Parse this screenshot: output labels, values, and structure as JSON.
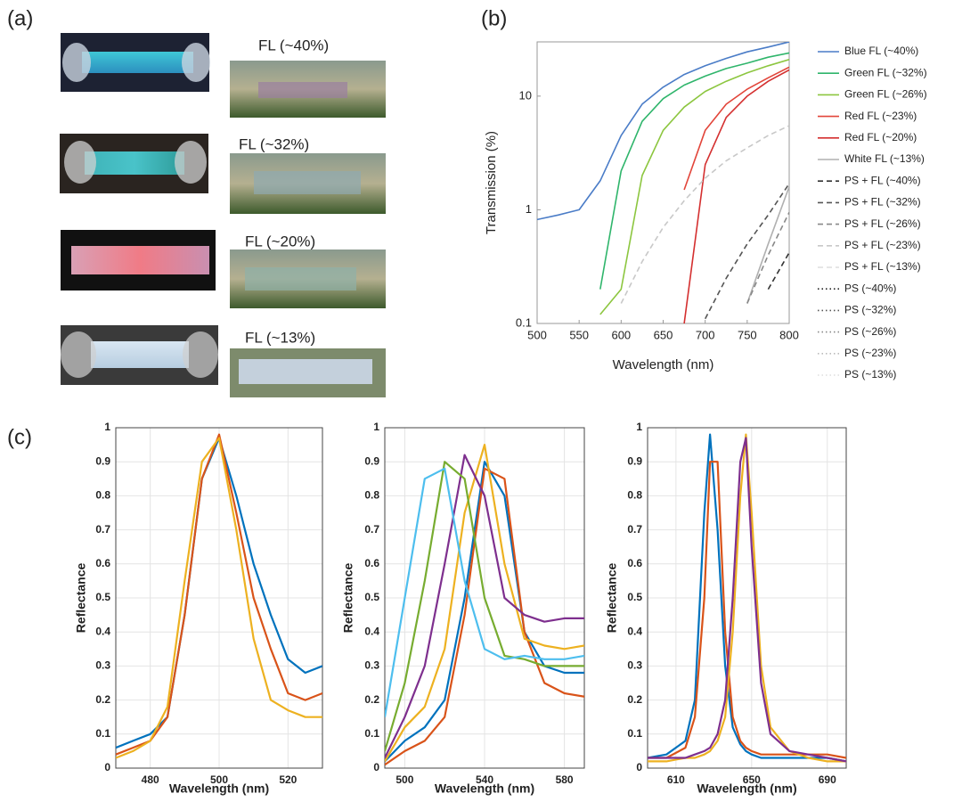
{
  "panel_a": {
    "label": "(a)",
    "captions": [
      "FL (~40%)",
      "FL (~32%)",
      "FL (~20%)",
      "FL (~13%)"
    ]
  },
  "chart_data": [
    {
      "type": "line",
      "panel_label": "(b)",
      "x_label": "Wavelength (nm)",
      "y_label": "Transmission (%)",
      "log_y": true,
      "grid": false,
      "legend": "right",
      "x": [
        500,
        525,
        550,
        575,
        600,
        625,
        650,
        675,
        700,
        725,
        750,
        775,
        800
      ],
      "xlim": [
        500,
        800
      ],
      "xticks": [
        500,
        550,
        600,
        650,
        700,
        750,
        800
      ],
      "ylim": [
        0.1,
        30
      ],
      "yticks": [
        0.1,
        1,
        10
      ],
      "series": [
        {
          "name": "Blue FL (~40%)",
          "color": "#4a7cc7",
          "dash": "solid",
          "values": [
            0.82,
            0.9,
            1.0,
            1.8,
            4.5,
            8.5,
            12,
            15.5,
            18.5,
            21.5,
            24.5,
            27,
            30
          ]
        },
        {
          "name": "Green FL (~32%)",
          "color": "#2fb56b",
          "dash": "solid",
          "values": [
            null,
            null,
            null,
            0.2,
            2.2,
            6,
            9.5,
            12.5,
            15,
            17.5,
            19.5,
            22,
            24
          ]
        },
        {
          "name": "Green FL (~26%)",
          "color": "#8cc63f",
          "dash": "solid",
          "values": [
            null,
            null,
            null,
            0.12,
            0.2,
            2,
            5,
            8,
            11,
            13.5,
            16,
            18.5,
            21
          ]
        },
        {
          "name": "Red FL (~23%)",
          "color": "#e2453a",
          "dash": "solid",
          "values": [
            null,
            null,
            null,
            null,
            null,
            null,
            null,
            1.5,
            5,
            8.5,
            11.5,
            14.5,
            18
          ]
        },
        {
          "name": "Red FL (~20%)",
          "color": "#d42f2f",
          "dash": "solid",
          "values": [
            null,
            null,
            null,
            null,
            null,
            null,
            null,
            0.1,
            2.5,
            6.5,
            10,
            13.5,
            17
          ]
        },
        {
          "name": "White FL (~13%)",
          "color": "#b0b0b0",
          "dash": "solid",
          "values": [
            null,
            null,
            null,
            null,
            null,
            null,
            null,
            null,
            null,
            null,
            0.15,
            0.5,
            1.6
          ]
        },
        {
          "name": "PS  + FL (~40%)",
          "color": "#333333",
          "dash": "dashed",
          "values": [
            null,
            null,
            null,
            null,
            null,
            null,
            null,
            null,
            null,
            null,
            null,
            0.2,
            0.42
          ]
        },
        {
          "name": "PS + FL (~32%)",
          "color": "#555555",
          "dash": "dashed",
          "values": [
            null,
            null,
            null,
            null,
            null,
            null,
            null,
            null,
            0.11,
            0.25,
            0.5,
            0.9,
            1.7
          ]
        },
        {
          "name": "PS + FL (~26%)",
          "color": "#888888",
          "dash": "dashed",
          "values": [
            null,
            null,
            null,
            null,
            null,
            null,
            null,
            null,
            null,
            null,
            0.15,
            0.4,
            0.95
          ]
        },
        {
          "name": "PS + FL (~23%)",
          "color": "#c8c8c8",
          "dash": "dashed",
          "values": [
            null,
            null,
            null,
            null,
            0.15,
            0.35,
            0.7,
            1.2,
            1.9,
            2.7,
            3.5,
            4.5,
            5.5
          ]
        },
        {
          "name": "PS + FL (~13%)",
          "color": "#dddddd",
          "dash": "dashed",
          "values": [
            null,
            null,
            null,
            null,
            null,
            null,
            null,
            null,
            null,
            null,
            null,
            null,
            null
          ]
        },
        {
          "name": "PS (~40%)",
          "color": "#222222",
          "dash": "dotted",
          "values": [
            null,
            null,
            null,
            null,
            null,
            null,
            null,
            null,
            null,
            null,
            null,
            null,
            null
          ]
        },
        {
          "name": "PS (~32%)",
          "color": "#555555",
          "dash": "dotted",
          "values": [
            null,
            null,
            null,
            null,
            null,
            null,
            null,
            null,
            null,
            null,
            null,
            null,
            null
          ]
        },
        {
          "name": "PS (~26%)",
          "color": "#888888",
          "dash": "dotted",
          "values": [
            null,
            null,
            null,
            null,
            null,
            null,
            null,
            null,
            null,
            null,
            null,
            null,
            null
          ]
        },
        {
          "name": "PS (~23%)",
          "color": "#bbbbbb",
          "dash": "dotted",
          "values": [
            null,
            null,
            null,
            null,
            null,
            null,
            null,
            null,
            null,
            null,
            null,
            null,
            null
          ]
        },
        {
          "name": "PS (~13%)",
          "color": "#dddddd",
          "dash": "dotted",
          "values": [
            null,
            null,
            null,
            null,
            null,
            null,
            null,
            null,
            null,
            null,
            null,
            null,
            null
          ]
        }
      ]
    },
    {
      "type": "line",
      "panel_label": "(c)",
      "x_label": "Wavelength (nm)",
      "y_label": "Reflectance",
      "grid": true,
      "x": [
        470,
        475,
        480,
        485,
        490,
        495,
        500,
        505,
        510,
        515,
        520,
        525,
        530
      ],
      "xlim": [
        470,
        530
      ],
      "xticks": [
        480,
        500,
        520
      ],
      "ylim": [
        0,
        1
      ],
      "yticks": [
        0,
        0.1,
        0.2,
        0.3,
        0.4,
        0.5,
        0.6,
        0.7,
        0.8,
        0.9,
        1
      ],
      "series": [
        {
          "color": "#0072bd",
          "values": [
            0.06,
            0.08,
            0.1,
            0.15,
            0.45,
            0.85,
            0.97,
            0.8,
            0.6,
            0.45,
            0.32,
            0.28,
            0.3
          ]
        },
        {
          "color": "#d95319",
          "values": [
            0.04,
            0.06,
            0.08,
            0.15,
            0.45,
            0.85,
            0.98,
            0.75,
            0.5,
            0.35,
            0.22,
            0.2,
            0.22
          ]
        },
        {
          "color": "#edb120",
          "values": [
            0.03,
            0.05,
            0.08,
            0.18,
            0.55,
            0.9,
            0.97,
            0.7,
            0.38,
            0.2,
            0.17,
            0.15,
            0.15
          ]
        }
      ]
    },
    {
      "type": "line",
      "x_label": "Wavelength (nm)",
      "y_label": "Reflectance",
      "grid": true,
      "x": [
        490,
        500,
        510,
        520,
        530,
        540,
        550,
        560,
        570,
        580,
        590
      ],
      "xlim": [
        490,
        590
      ],
      "xticks": [
        500,
        540,
        580
      ],
      "ylim": [
        0,
        1
      ],
      "yticks": [
        0,
        0.1,
        0.2,
        0.3,
        0.4,
        0.5,
        0.6,
        0.7,
        0.8,
        0.9,
        1
      ],
      "series": [
        {
          "color": "#0072bd",
          "values": [
            0.02,
            0.08,
            0.12,
            0.2,
            0.5,
            0.9,
            0.8,
            0.4,
            0.3,
            0.28,
            0.28
          ]
        },
        {
          "color": "#d95319",
          "values": [
            0.01,
            0.05,
            0.08,
            0.15,
            0.45,
            0.88,
            0.85,
            0.4,
            0.25,
            0.22,
            0.21
          ]
        },
        {
          "color": "#edb120",
          "values": [
            0.02,
            0.12,
            0.18,
            0.35,
            0.75,
            0.95,
            0.6,
            0.38,
            0.36,
            0.35,
            0.36
          ]
        },
        {
          "color": "#7e2f8e",
          "values": [
            0.03,
            0.15,
            0.3,
            0.6,
            0.92,
            0.8,
            0.5,
            0.45,
            0.43,
            0.44,
            0.44
          ]
        },
        {
          "color": "#77ac30",
          "values": [
            0.05,
            0.25,
            0.55,
            0.9,
            0.85,
            0.5,
            0.33,
            0.32,
            0.3,
            0.3,
            0.3
          ]
        },
        {
          "color": "#4dbeee",
          "values": [
            0.15,
            0.5,
            0.85,
            0.88,
            0.55,
            0.35,
            0.32,
            0.33,
            0.32,
            0.32,
            0.33
          ]
        }
      ]
    },
    {
      "type": "line",
      "x_label": "Wavelength (nm)",
      "y_label": "Reflectance",
      "grid": true,
      "x": [
        595,
        605,
        615,
        620,
        625,
        628,
        632,
        636,
        640,
        644,
        647,
        650,
        655,
        660,
        670,
        680,
        690,
        700
      ],
      "xlim": [
        595,
        700
      ],
      "xticks": [
        610,
        650,
        690
      ],
      "ylim": [
        0,
        1
      ],
      "yticks": [
        0,
        0.1,
        0.2,
        0.3,
        0.4,
        0.5,
        0.6,
        0.7,
        0.8,
        0.9,
        1
      ],
      "series": [
        {
          "color": "#0072bd",
          "values": [
            0.03,
            0.04,
            0.08,
            0.2,
            0.75,
            0.98,
            0.7,
            0.3,
            0.12,
            0.07,
            0.05,
            0.04,
            0.03,
            0.03,
            0.03,
            0.03,
            0.03,
            0.02
          ]
        },
        {
          "color": "#d95319",
          "values": [
            0.03,
            0.03,
            0.06,
            0.15,
            0.5,
            0.9,
            0.9,
            0.4,
            0.15,
            0.08,
            0.06,
            0.05,
            0.04,
            0.04,
            0.04,
            0.04,
            0.04,
            0.03
          ]
        },
        {
          "color": "#edb120",
          "values": [
            0.02,
            0.02,
            0.03,
            0.03,
            0.04,
            0.05,
            0.08,
            0.15,
            0.4,
            0.8,
            0.98,
            0.75,
            0.3,
            0.12,
            0.05,
            0.03,
            0.02,
            0.02
          ]
        },
        {
          "color": "#7e2f8e",
          "values": [
            0.03,
            0.03,
            0.03,
            0.04,
            0.05,
            0.06,
            0.1,
            0.2,
            0.5,
            0.9,
            0.97,
            0.65,
            0.25,
            0.1,
            0.05,
            0.04,
            0.03,
            0.02
          ]
        }
      ]
    }
  ]
}
